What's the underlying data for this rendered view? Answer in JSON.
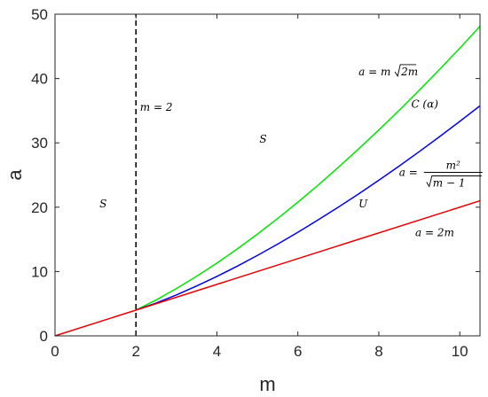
{
  "chart_data": {
    "type": "line",
    "xlabel": "m",
    "ylabel": "a",
    "xlim": [
      0,
      10.5
    ],
    "ylim": [
      0,
      50
    ],
    "xticks": [
      "0",
      "2",
      "4",
      "6",
      "8",
      "10"
    ],
    "yticks": [
      "0",
      "10",
      "20",
      "30",
      "40",
      "50"
    ],
    "grid": false,
    "series": [
      {
        "name": "a = m√2m",
        "color": "#00e600",
        "x": [
          2,
          2.5,
          3,
          3.5,
          4,
          4.5,
          5,
          5.5,
          6,
          6.5,
          7,
          7.5,
          8,
          8.5,
          9,
          9.5,
          10,
          10.5
        ],
        "values": [
          4.0,
          5.59,
          7.35,
          9.26,
          11.31,
          13.5,
          15.81,
          18.24,
          20.78,
          23.43,
          26.19,
          29.05,
          32.0,
          35.04,
          38.18,
          41.41,
          44.72,
          48.12
        ]
      },
      {
        "name": "a = m²/√(m−1)",
        "color": "#0000e6",
        "x": [
          2,
          2.5,
          3,
          3.5,
          4,
          4.5,
          5,
          5.5,
          6,
          6.5,
          7,
          7.5,
          8,
          8.5,
          9,
          9.5,
          10,
          10.5
        ],
        "values": [
          4.0,
          5.1,
          6.36,
          7.75,
          9.24,
          10.82,
          12.5,
          14.26,
          16.1,
          18.02,
          20.0,
          22.06,
          24.19,
          26.38,
          28.64,
          30.96,
          33.33,
          35.76
        ]
      },
      {
        "name": "a = 2m",
        "color": "#e60000",
        "x": [
          0,
          10.5
        ],
        "values": [
          0,
          21
        ]
      },
      {
        "name": "m = 2",
        "color": "#000000",
        "dashed": true,
        "x": [
          2,
          2
        ],
        "values": [
          0,
          50
        ]
      }
    ],
    "annotations": [
      {
        "id": "m2",
        "text": "m = 2",
        "x": 2.1,
        "y": 35
      },
      {
        "id": "s_left",
        "text": "S",
        "x": 1.1,
        "y": 20
      },
      {
        "id": "s_mid",
        "text": "S",
        "x": 5.05,
        "y": 30
      },
      {
        "id": "u",
        "text": "U",
        "x": 7.5,
        "y": 20
      },
      {
        "id": "c_alpha",
        "text": "C (α)",
        "x": 8.8,
        "y": 35.5
      },
      {
        "id": "green_eq",
        "text": "a = m√2m",
        "x": 7.5,
        "y": 40.5
      },
      {
        "id": "blue_eq",
        "text": "a = m²/√(m−1)",
        "x": 8.5,
        "y": 25
      },
      {
        "id": "red_eq",
        "text": "a = 2m",
        "x": 8.9,
        "y": 15.5
      }
    ]
  }
}
